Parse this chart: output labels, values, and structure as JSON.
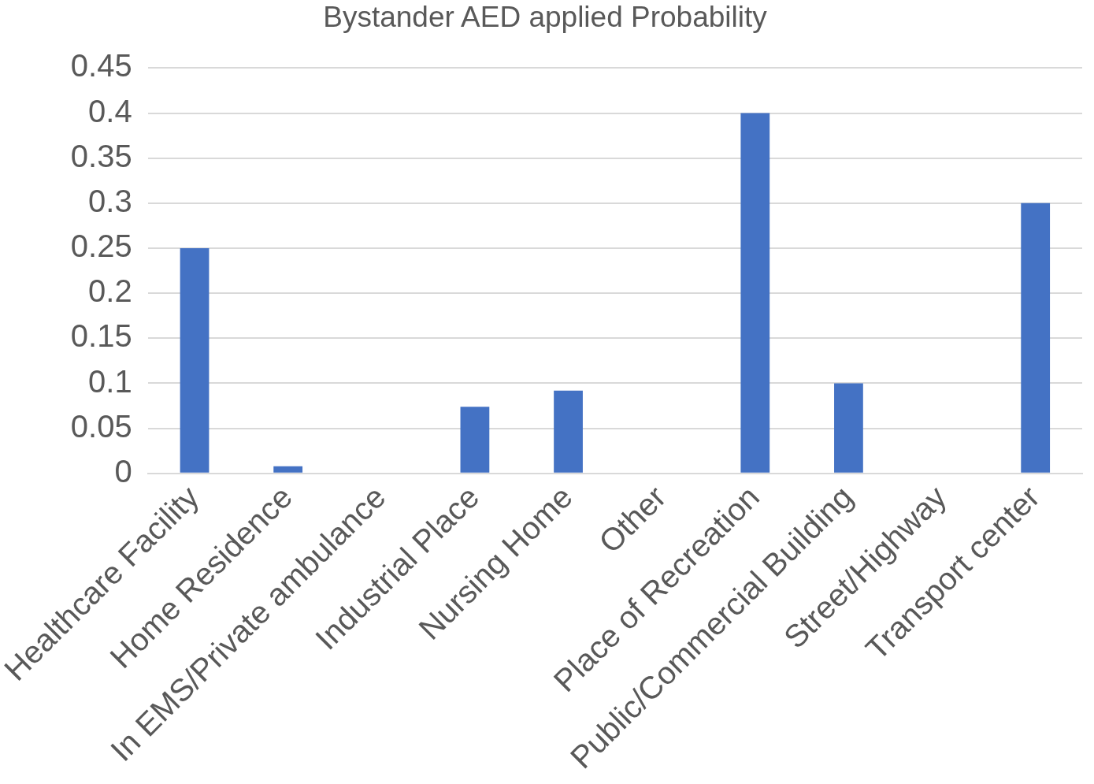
{
  "chart_data": {
    "type": "bar",
    "title": "Bystander AED applied Probability",
    "categories": [
      "Healthcare Facility",
      "Home Residence",
      "In EMS/Private ambulance",
      "Industrial Place",
      "Nursing Home",
      "Other",
      "Place of Recreation",
      "Public/Commercial Building",
      "Street/Highway",
      "Transport center"
    ],
    "values": [
      0.25,
      0.008,
      0,
      0.074,
      0.092,
      0,
      0.4,
      0.1,
      0,
      0.3
    ],
    "color": "#4472c4",
    "ylim": [
      0,
      0.45
    ],
    "yticks": [
      0,
      0.05,
      0.1,
      0.15,
      0.2,
      0.25,
      0.3,
      0.35,
      0.4,
      0.45
    ],
    "grid": "y",
    "legend": false
  }
}
